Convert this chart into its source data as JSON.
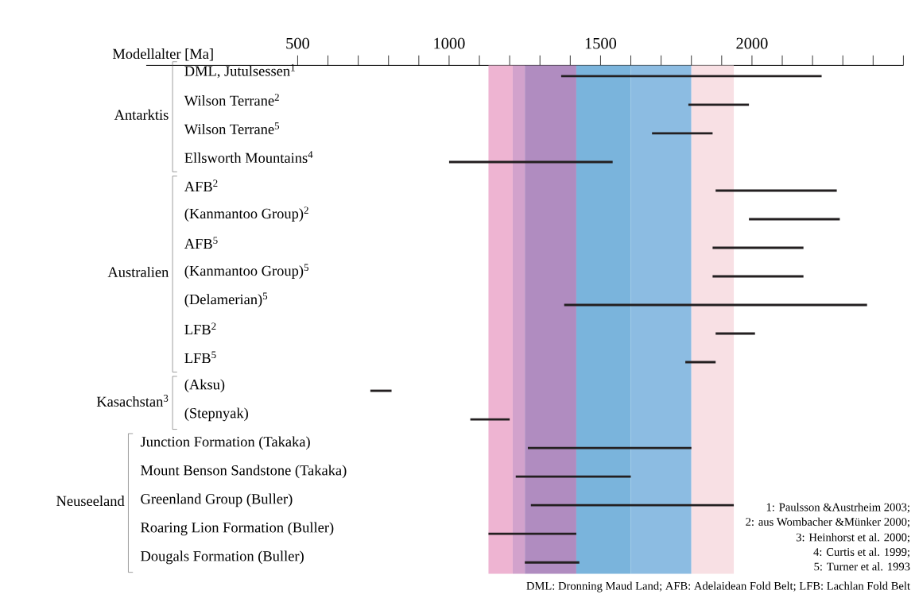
{
  "chart_data": {
    "type": "bar",
    "orientation": "horizontal",
    "xlabel": "Modellalter [Ma]",
    "categories": [
      "DML, Jutulsessen$^{1}$",
      "Wilson Terrane$^{2}$",
      "Wilson Terrane$^{5}$",
      "Ellsworth Mountains$^{4}$",
      "AFB$^{2}$",
      "(Kanmantoo Group)$^{2}$",
      "AFB$^{5}$",
      "(Kanmantoo Group)$^{5}$",
      "(Delamerian)$^{5}$",
      "LFB$^{2}$",
      "LFB$^{5}$",
      "(Aksu)",
      "(Stepnyak)",
      "Junction Formation (Takaka)",
      "Mount Benson Sandstone (Takaka)",
      "Greenland Group (Buller)",
      "Roaring Lion Formation (Buller)",
      "Dougals Formation (Buller)"
    ],
    "base": [
      1370,
      1790,
      1670,
      1000,
      1880,
      1990,
      1870,
      1870,
      1380,
      1880,
      1780,
      740,
      1070,
      1260,
      1220,
      1270,
      1130,
      1250
    ],
    "values": [
      860,
      200,
      200,
      540,
      400,
      300,
      300,
      300,
      1000,
      130,
      100,
      70,
      130,
      540,
      380,
      670,
      290,
      180
    ],
    "color": "#231f20",
    "xlim": [
      0,
      2500
    ],
    "xticks": [
      500,
      {
        "value": 600,
        "label": null
      },
      {
        "value": 700,
        "label": null
      },
      {
        "value": 800,
        "label": null
      },
      {
        "value": 900,
        "label": null
      },
      1000,
      {
        "value": 1100,
        "label": null
      },
      {
        "value": 1200,
        "label": null
      },
      {
        "value": 1300,
        "label": null
      },
      {
        "value": 1400,
        "label": null
      },
      1500,
      {
        "value": 1600,
        "label": null
      },
      {
        "value": 1700,
        "label": null
      },
      {
        "value": 1800,
        "label": null
      },
      {
        "value": 1900,
        "label": null
      },
      2000,
      {
        "value": 2100,
        "label": null
      },
      {
        "value": 2200,
        "label": null
      },
      {
        "value": 2300,
        "label": null
      },
      {
        "value": 2400,
        "label": null
      },
      {
        "value": 2500,
        "label": null
      }
    ],
    "bands": [
      {
        "axis": "x",
        "from": 1130,
        "to": 1210,
        "color": "#eeb4d2"
      },
      {
        "axis": "x",
        "from": 1210,
        "to": 1250,
        "color": "#d2a2cc"
      },
      {
        "axis": "x",
        "from": 1250,
        "to": 1420,
        "color": "#b08cc0"
      },
      {
        "axis": "x",
        "from": 1420,
        "to": 1600,
        "color": "#7ab4dc"
      },
      {
        "axis": "x",
        "from": 1600,
        "to": 1800,
        "color": "#8cbce2"
      },
      {
        "axis": "x",
        "from": 1800,
        "to": 1940,
        "color": "#f8e0e4"
      }
    ],
    "annotations": [
      "Antarktis",
      "Australien",
      "Kasachstan$^{3}$",
      "Neuseeland",
      "1: Paulsson &Austrheim 2003;",
      "2: aus Wombacher &Münker 2000;",
      "3: Heinhorst et al. 2000;",
      "4: Curtis et al. 1999;",
      "5: Turner et al. 1993",
      "DML: Dronning Maud Land; AFB: Adelaidean Fold Belt; LFB: Lachlan Fold Belt"
    ]
  }
}
